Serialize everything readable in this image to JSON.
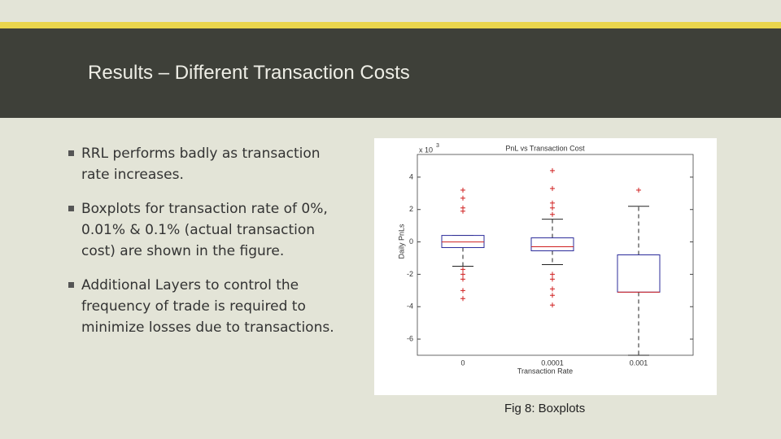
{
  "header": {
    "title": "Results – Different Transaction Costs"
  },
  "bullets": [
    "RRL performs badly as transaction rate increases.",
    "Boxplots for transaction rate of 0%, 0.01% & 0.1% (actual transaction cost) are shown in the figure.",
    "Additional Layers to control the frequency of trade is required to minimize losses due to transactions."
  ],
  "figure": {
    "caption": "Fig 8: Boxplots"
  },
  "chart_data": {
    "type": "boxplot",
    "title": "PnL vs Transaction Cost",
    "x_label": "Transaction Rate",
    "y_label": "Daily PnLs",
    "y_multiplier": "x 10",
    "y_exponent": "3",
    "categories": [
      "0",
      "0.0001",
      "0.001"
    ],
    "ylim": [
      -7,
      5.4
    ],
    "yticks": [
      -6,
      -4,
      -2,
      0,
      2,
      4
    ],
    "box_color": "#2b2b9a",
    "median_color": "#d02020",
    "outlier_color": "#d02020",
    "whisker_color": "#222222",
    "boxes": [
      {
        "whisker_low": -1.5,
        "q1": -0.35,
        "median": 0,
        "q3": 0.4,
        "whisker_high": 0.4,
        "outliers": [
          3.2,
          2.7,
          2.1,
          1.9,
          -1.7,
          -2,
          -2.3,
          -3,
          -3.5
        ]
      },
      {
        "whisker_low": -1.4,
        "q1": -0.55,
        "median": -0.3,
        "q3": 0.25,
        "whisker_high": 1.4,
        "outliers": [
          4.4,
          3.3,
          2.4,
          2.1,
          1.7,
          -2,
          -2.3,
          -2.9,
          -3.3,
          -3.9
        ]
      },
      {
        "whisker_low": -7,
        "q1": -3.1,
        "median": -3.1,
        "q3": -0.8,
        "whisker_high": 2.2,
        "outliers": [
          3.2
        ]
      }
    ]
  }
}
